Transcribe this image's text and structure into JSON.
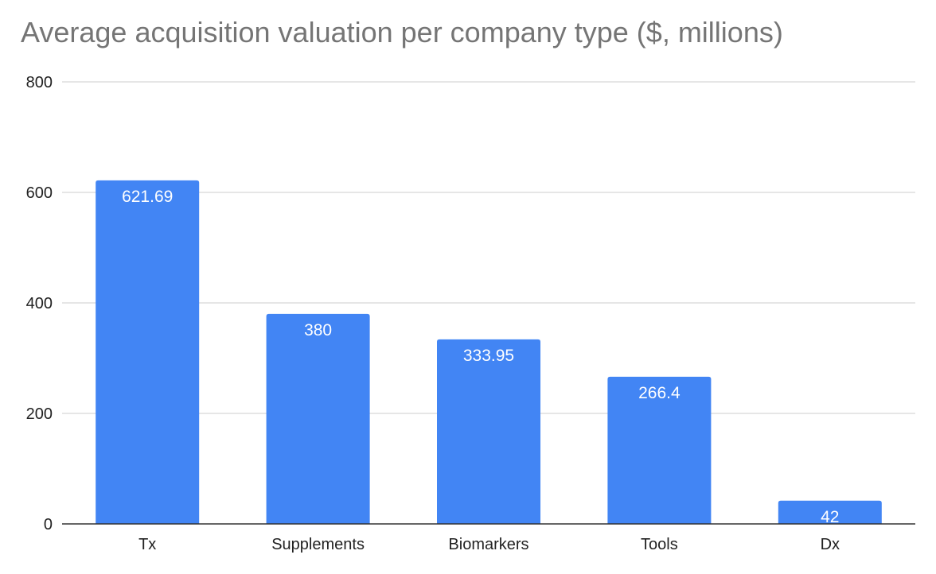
{
  "chart_data": {
    "type": "bar",
    "title": "Average acquisition valuation per company type ($, millions)",
    "xlabel": "",
    "ylabel": "",
    "categories": [
      "Tx",
      "Supplements",
      "Biomarkers",
      "Tools",
      "Dx"
    ],
    "values": [
      621.69,
      380,
      333.95,
      266.4,
      42
    ],
    "data_labels": [
      "621.69",
      "380",
      "333.95",
      "266.4",
      "42"
    ],
    "ylim": [
      0,
      800
    ],
    "yticks": [
      0,
      200,
      400,
      600,
      800
    ],
    "ytick_labels": [
      "0",
      "200",
      "400",
      "600",
      "800"
    ],
    "grid": true,
    "legend": "none",
    "bar_color": "#4285f4",
    "grid_color": "#cccccc",
    "title_color": "#757575"
  }
}
